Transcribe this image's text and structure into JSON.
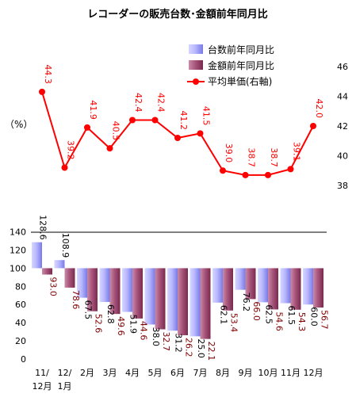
{
  "chart_data": {
    "type": "bar",
    "title": "レコーダーの販売台数･金額前年同月比",
    "left_axis_unit": "（%）",
    "categories": [
      {
        "line1": "11/",
        "line2": "12月"
      },
      {
        "line1": "12/",
        "line2": "1月"
      },
      {
        "line1": "2月",
        "line2": ""
      },
      {
        "line1": "3月",
        "line2": ""
      },
      {
        "line1": "4月",
        "line2": ""
      },
      {
        "line1": "5月",
        "line2": ""
      },
      {
        "line1": "6月",
        "line2": ""
      },
      {
        "line1": "7月",
        "line2": ""
      },
      {
        "line1": "8月",
        "line2": ""
      },
      {
        "line1": "9月",
        "line2": ""
      },
      {
        "line1": "10月",
        "line2": ""
      },
      {
        "line1": "11月",
        "line2": ""
      },
      {
        "line1": "12月",
        "line2": ""
      }
    ],
    "series": [
      {
        "name": "台数前年同月比",
        "kind": "bar",
        "axis": "left",
        "color": "#9999ff",
        "values": [
          128.6,
          108.9,
          67.5,
          62.8,
          51.9,
          38.0,
          31.2,
          25.0,
          62.1,
          76.2,
          62.5,
          61.5,
          60.0
        ],
        "labels": [
          "128.6",
          "108.9",
          "67.5",
          "62.8",
          "51.9",
          "38.0",
          "31.2",
          "25.0",
          "62.1",
          "76.2",
          "62.5",
          "61.5",
          "60.0"
        ]
      },
      {
        "name": "金額前年同月比",
        "kind": "bar",
        "axis": "left",
        "color": "#993366",
        "values": [
          93.0,
          78.6,
          52.6,
          49.6,
          44.6,
          32.7,
          26.2,
          22.1,
          53.4,
          66.0,
          54.6,
          54.3,
          56.7
        ],
        "labels": [
          "93.0",
          "78.6",
          "52.6",
          "49.6",
          "44.6",
          "32.7",
          "26.2",
          "22.1",
          "53.4",
          "66.0",
          "54.6",
          "54.3",
          "56.7"
        ]
      },
      {
        "name": "平均単価(右軸)",
        "kind": "line",
        "axis": "right",
        "color": "#ff0000",
        "values": [
          44.3,
          39.2,
          41.9,
          40.5,
          42.4,
          42.4,
          41.2,
          41.5,
          39.0,
          38.7,
          38.7,
          39.1,
          42.0
        ],
        "labels": [
          "44.3",
          "39.2",
          "41.9",
          "40.5",
          "42.4",
          "42.4",
          "41.2",
          "41.5",
          "39.0",
          "38.7",
          "38.7",
          "39.1",
          "42.0"
        ]
      }
    ],
    "left_axis": {
      "ticks": [
        "0",
        "20",
        "40",
        "60",
        "80",
        "100",
        "120",
        "140"
      ],
      "range": [
        0,
        140
      ],
      "baseline": 100
    },
    "right_axis": {
      "ticks": [
        "38",
        "40",
        "42",
        "44",
        "46"
      ],
      "range": [
        38,
        46
      ]
    },
    "grid": false,
    "legend_placement": "top-right"
  }
}
